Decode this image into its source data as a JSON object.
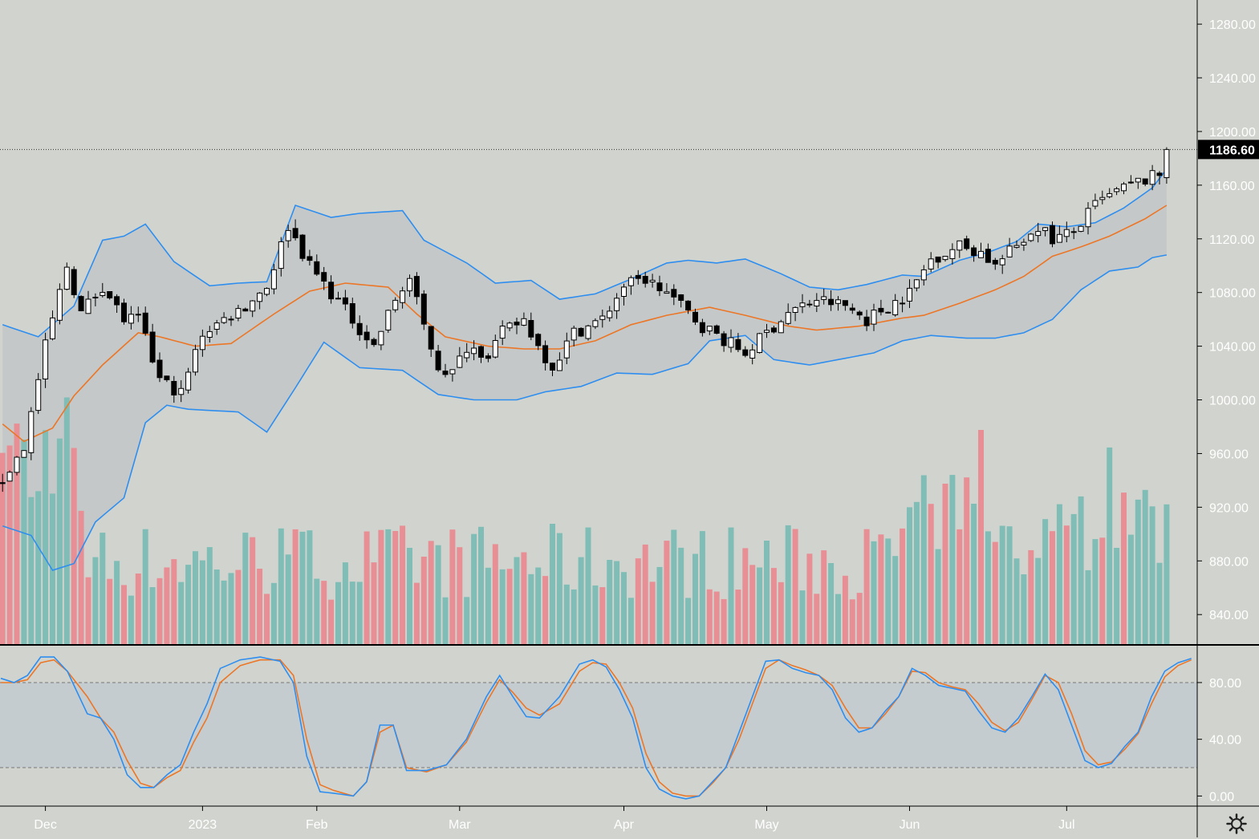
{
  "colors": {
    "background": "#d1d4ce",
    "band_fill": "#c3c7c8",
    "band_line": "#2e8ef0",
    "basis_line": "#ec7626",
    "candle_up": "#ffffff",
    "candle_down": "#000000",
    "candle_border": "#000000",
    "volume_up": "#7fbdb6",
    "volume_down": "#e88f95",
    "stoch_k": "#2e8ef0",
    "stoch_d": "#ec7626",
    "stoch_band": "#c3cbd0",
    "axis_text": "#ffffff",
    "price_label_bg": "#000000",
    "price_label_text": "#ffffff"
  },
  "chart_data": {
    "type": "candlestick",
    "title": "",
    "price_axis": {
      "ylim": [
        818,
        1298
      ],
      "ticks": [
        840,
        880,
        920,
        960,
        1000,
        1040,
        1080,
        1120,
        1160,
        1200,
        1240,
        1280
      ],
      "tick_labels": [
        "840.00",
        "880.00",
        "920.00",
        "960.00",
        "1000.00",
        "1040.00",
        "1080.00",
        "1120.00",
        "1160.00",
        "1200.00",
        "1240.00",
        "1280.00"
      ]
    },
    "last_price": 1186.6,
    "last_price_label": "1186.60",
    "x_axis": {
      "labels": [
        "Dec",
        "2023",
        "Feb",
        "Mar",
        "Apr",
        "May",
        "Jun",
        "Jul"
      ],
      "label_bar_index": [
        6,
        28,
        44,
        64,
        87,
        107,
        127,
        149
      ]
    },
    "bollinger": {
      "upper_keys": [
        [
          0,
          1056
        ],
        [
          5,
          1047
        ],
        [
          10,
          1070
        ],
        [
          14,
          1119
        ],
        [
          17,
          1122
        ],
        [
          20,
          1131
        ],
        [
          24,
          1103
        ],
        [
          29,
          1085
        ],
        [
          33,
          1087
        ],
        [
          37,
          1088
        ],
        [
          41,
          1145
        ],
        [
          46,
          1136
        ],
        [
          50,
          1139
        ],
        [
          56,
          1141
        ],
        [
          59,
          1119
        ],
        [
          65,
          1102
        ],
        [
          69,
          1087
        ],
        [
          74,
          1089
        ],
        [
          78,
          1075
        ],
        [
          83,
          1079
        ],
        [
          88,
          1090
        ],
        [
          93,
          1102
        ],
        [
          96,
          1104
        ],
        [
          100,
          1102
        ],
        [
          104,
          1105
        ],
        [
          109,
          1094
        ],
        [
          113,
          1084
        ],
        [
          117,
          1082
        ],
        [
          121,
          1086
        ],
        [
          126,
          1093
        ],
        [
          129,
          1092
        ],
        [
          134,
          1104
        ],
        [
          138,
          1110
        ],
        [
          142,
          1118
        ],
        [
          145,
          1131
        ],
        [
          149,
          1129
        ],
        [
          153,
          1132
        ],
        [
          157,
          1143
        ],
        [
          161,
          1158
        ],
        [
          163,
          1172
        ]
      ],
      "basis_keys": [
        [
          0,
          982
        ],
        [
          3,
          969
        ],
        [
          7,
          979
        ],
        [
          10,
          1003
        ],
        [
          14,
          1026
        ],
        [
          19,
          1050
        ],
        [
          22,
          1047
        ],
        [
          27,
          1040
        ],
        [
          32,
          1042
        ],
        [
          38,
          1064
        ],
        [
          43,
          1081
        ],
        [
          48,
          1087
        ],
        [
          54,
          1084
        ],
        [
          58,
          1064
        ],
        [
          62,
          1047
        ],
        [
          68,
          1040
        ],
        [
          73,
          1038
        ],
        [
          78,
          1038
        ],
        [
          83,
          1044
        ],
        [
          88,
          1056
        ],
        [
          93,
          1063
        ],
        [
          99,
          1069
        ],
        [
          104,
          1063
        ],
        [
          110,
          1055
        ],
        [
          114,
          1052
        ],
        [
          120,
          1055
        ],
        [
          126,
          1061
        ],
        [
          129,
          1063
        ],
        [
          134,
          1072
        ],
        [
          139,
          1082
        ],
        [
          143,
          1092
        ],
        [
          147,
          1107
        ],
        [
          151,
          1114
        ],
        [
          155,
          1122
        ],
        [
          160,
          1135
        ],
        [
          163,
          1145
        ]
      ],
      "lower_keys": [
        [
          0,
          906
        ],
        [
          4,
          899
        ],
        [
          7,
          873
        ],
        [
          10,
          878
        ],
        [
          13,
          909
        ],
        [
          17,
          927
        ],
        [
          20,
          983
        ],
        [
          23,
          996
        ],
        [
          26,
          993
        ],
        [
          33,
          991
        ],
        [
          37,
          976
        ],
        [
          41,
          1009
        ],
        [
          45,
          1043
        ],
        [
          50,
          1024
        ],
        [
          56,
          1022
        ],
        [
          61,
          1004
        ],
        [
          66,
          1000
        ],
        [
          72,
          1000
        ],
        [
          76,
          1006
        ],
        [
          81,
          1010
        ],
        [
          86,
          1020
        ],
        [
          91,
          1019
        ],
        [
          96,
          1027
        ],
        [
          99,
          1044
        ],
        [
          104,
          1048
        ],
        [
          108,
          1030
        ],
        [
          113,
          1026
        ],
        [
          117,
          1030
        ],
        [
          122,
          1035
        ],
        [
          126,
          1044
        ],
        [
          130,
          1048
        ],
        [
          135,
          1046
        ],
        [
          139,
          1046
        ],
        [
          143,
          1050
        ],
        [
          147,
          1060
        ],
        [
          151,
          1082
        ],
        [
          155,
          1096
        ],
        [
          159,
          1099
        ],
        [
          161,
          1106
        ],
        [
          163,
          1108
        ]
      ]
    },
    "candle_keys": [
      [
        0,
        940
      ],
      [
        3,
        965
      ],
      [
        6,
        1040
      ],
      [
        9,
        1100
      ],
      [
        11,
        1065
      ],
      [
        14,
        1085
      ],
      [
        17,
        1060
      ],
      [
        19,
        1060
      ],
      [
        22,
        1015
      ],
      [
        25,
        1005
      ],
      [
        28,
        1050
      ],
      [
        31,
        1060
      ],
      [
        34,
        1070
      ],
      [
        37,
        1085
      ],
      [
        40,
        1130
      ],
      [
        43,
        1100
      ],
      [
        46,
        1080
      ],
      [
        49,
        1060
      ],
      [
        52,
        1040
      ],
      [
        55,
        1075
      ],
      [
        57,
        1090
      ],
      [
        59,
        1055
      ],
      [
        61,
        1025
      ],
      [
        63,
        1020
      ],
      [
        65,
        1040
      ],
      [
        68,
        1035
      ],
      [
        70,
        1050
      ],
      [
        73,
        1060
      ],
      [
        75,
        1040
      ],
      [
        77,
        1025
      ],
      [
        80,
        1050
      ],
      [
        84,
        1060
      ],
      [
        87,
        1085
      ],
      [
        90,
        1090
      ],
      [
        93,
        1080
      ],
      [
        95,
        1070
      ],
      [
        98,
        1055
      ],
      [
        101,
        1045
      ],
      [
        104,
        1035
      ],
      [
        107,
        1050
      ],
      [
        110,
        1065
      ],
      [
        114,
        1075
      ],
      [
        118,
        1070
      ],
      [
        121,
        1060
      ],
      [
        124,
        1070
      ],
      [
        127,
        1080
      ],
      [
        130,
        1105
      ],
      [
        134,
        1115
      ],
      [
        137,
        1110
      ],
      [
        139,
        1100
      ],
      [
        142,
        1115
      ],
      [
        145,
        1130
      ],
      [
        147,
        1120
      ],
      [
        150,
        1125
      ],
      [
        153,
        1145
      ],
      [
        156,
        1155
      ],
      [
        159,
        1162
      ],
      [
        162,
        1168
      ],
      [
        163,
        1186
      ]
    ],
    "stochastic": {
      "ylim": [
        -6,
        106
      ],
      "ticks": [
        0,
        40,
        80
      ],
      "tick_labels": [
        "0.00",
        "40.00",
        "80.00"
      ],
      "band": [
        20,
        80
      ],
      "k_keys": [
        [
          0,
          83
        ],
        [
          2,
          80
        ],
        [
          4,
          85
        ],
        [
          6,
          98
        ],
        [
          8,
          98
        ],
        [
          10,
          88
        ],
        [
          13,
          58
        ],
        [
          15,
          55
        ],
        [
          17,
          40
        ],
        [
          19,
          15
        ],
        [
          21,
          6
        ],
        [
          23,
          6
        ],
        [
          25,
          15
        ],
        [
          27,
          22
        ],
        [
          29,
          45
        ],
        [
          31,
          65
        ],
        [
          33,
          90
        ],
        [
          36,
          96
        ],
        [
          39,
          98
        ],
        [
          42,
          95
        ],
        [
          44,
          80
        ],
        [
          46,
          28
        ],
        [
          48,
          3
        ],
        [
          50,
          2
        ],
        [
          53,
          0
        ],
        [
          55,
          10
        ],
        [
          57,
          50
        ],
        [
          59,
          50
        ],
        [
          61,
          18
        ],
        [
          64,
          18
        ],
        [
          67,
          22
        ],
        [
          70,
          40
        ],
        [
          73,
          70
        ],
        [
          75,
          85
        ],
        [
          77,
          70
        ],
        [
          79,
          56
        ],
        [
          81,
          55
        ],
        [
          84,
          70
        ],
        [
          87,
          93
        ],
        [
          89,
          96
        ],
        [
          91,
          91
        ],
        [
          93,
          75
        ],
        [
          95,
          55
        ],
        [
          97,
          20
        ],
        [
          99,
          5
        ],
        [
          101,
          0
        ],
        [
          103,
          -2
        ],
        [
          105,
          0
        ],
        [
          107,
          10
        ],
        [
          109,
          20
        ],
        [
          111,
          45
        ],
        [
          113,
          70
        ],
        [
          115,
          95
        ],
        [
          117,
          96
        ],
        [
          119,
          90
        ],
        [
          121,
          87
        ],
        [
          123,
          85
        ],
        [
          125,
          75
        ],
        [
          127,
          55
        ],
        [
          129,
          45
        ],
        [
          131,
          48
        ],
        [
          133,
          60
        ],
        [
          135,
          70
        ],
        [
          137,
          90
        ],
        [
          139,
          85
        ],
        [
          141,
          78
        ],
        [
          143,
          76
        ],
        [
          145,
          74
        ],
        [
          147,
          60
        ],
        [
          149,
          48
        ],
        [
          151,
          45
        ],
        [
          153,
          55
        ],
        [
          155,
          70
        ],
        [
          157,
          86
        ],
        [
          159,
          75
        ],
        [
          161,
          50
        ],
        [
          163,
          25
        ],
        [
          165,
          20
        ],
        [
          167,
          23
        ],
        [
          169,
          35
        ],
        [
          171,
          45
        ],
        [
          173,
          70
        ],
        [
          175,
          88
        ],
        [
          177,
          94
        ],
        [
          179,
          97
        ]
      ],
      "d_keys": [
        [
          0,
          80
        ],
        [
          2,
          80
        ],
        [
          4,
          82
        ],
        [
          6,
          94
        ],
        [
          8,
          96
        ],
        [
          10,
          88
        ],
        [
          13,
          70
        ],
        [
          15,
          55
        ],
        [
          17,
          45
        ],
        [
          19,
          25
        ],
        [
          21,
          9
        ],
        [
          23,
          6
        ],
        [
          25,
          13
        ],
        [
          27,
          18
        ],
        [
          29,
          38
        ],
        [
          31,
          55
        ],
        [
          33,
          80
        ],
        [
          36,
          92
        ],
        [
          39,
          96
        ],
        [
          42,
          96
        ],
        [
          44,
          85
        ],
        [
          46,
          40
        ],
        [
          48,
          8
        ],
        [
          50,
          4
        ],
        [
          53,
          0
        ],
        [
          55,
          10
        ],
        [
          57,
          45
        ],
        [
          59,
          50
        ],
        [
          61,
          20
        ],
        [
          64,
          17
        ],
        [
          67,
          22
        ],
        [
          70,
          38
        ],
        [
          73,
          66
        ],
        [
          75,
          82
        ],
        [
          77,
          73
        ],
        [
          79,
          62
        ],
        [
          81,
          57
        ],
        [
          84,
          65
        ],
        [
          87,
          88
        ],
        [
          89,
          94
        ],
        [
          91,
          93
        ],
        [
          93,
          80
        ],
        [
          95,
          62
        ],
        [
          97,
          30
        ],
        [
          99,
          10
        ],
        [
          101,
          2
        ],
        [
          103,
          0
        ],
        [
          105,
          0
        ],
        [
          107,
          9
        ],
        [
          109,
          20
        ],
        [
          111,
          40
        ],
        [
          113,
          65
        ],
        [
          115,
          90
        ],
        [
          117,
          96
        ],
        [
          119,
          92
        ],
        [
          121,
          89
        ],
        [
          123,
          85
        ],
        [
          125,
          78
        ],
        [
          127,
          62
        ],
        [
          129,
          48
        ],
        [
          131,
          48
        ],
        [
          133,
          58
        ],
        [
          135,
          70
        ],
        [
          137,
          88
        ],
        [
          139,
          87
        ],
        [
          141,
          80
        ],
        [
          143,
          77
        ],
        [
          145,
          75
        ],
        [
          147,
          65
        ],
        [
          149,
          52
        ],
        [
          151,
          46
        ],
        [
          153,
          52
        ],
        [
          155,
          68
        ],
        [
          157,
          85
        ],
        [
          159,
          80
        ],
        [
          161,
          58
        ],
        [
          163,
          32
        ],
        [
          165,
          22
        ],
        [
          167,
          24
        ],
        [
          169,
          33
        ],
        [
          171,
          44
        ],
        [
          173,
          65
        ],
        [
          175,
          84
        ],
        [
          177,
          92
        ],
        [
          179,
          96
        ]
      ]
    }
  }
}
